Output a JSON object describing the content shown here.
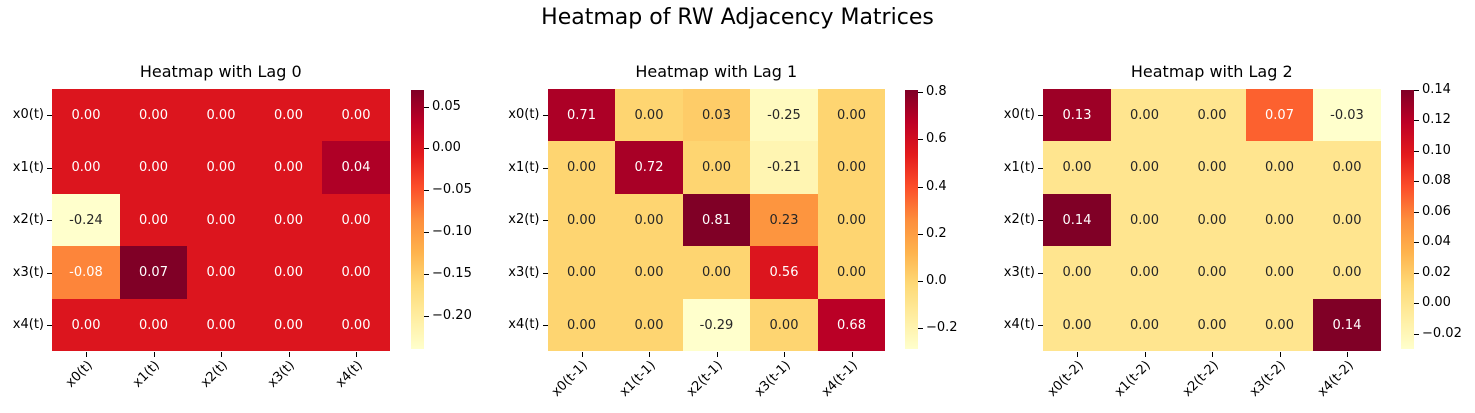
{
  "figure_title": "Heatmap of RW Adjacency Matrices",
  "colors": {
    "background": "#ffffff",
    "colormap": "YlOrRd",
    "colormap_stops": [
      "#ffffcc",
      "#ffeda0",
      "#fed976",
      "#feb24c",
      "#fd8d3c",
      "#fc4e2a",
      "#e31a1c",
      "#bd0026",
      "#800026"
    ],
    "annotation_light": "#ffffff",
    "annotation_dark": "#262626",
    "tick_color": "#000000"
  },
  "chart_data": [
    {
      "type": "heatmap",
      "title": "Heatmap with Lag 0",
      "row_labels": [
        "x0(t)",
        "x1(t)",
        "x2(t)",
        "x3(t)",
        "x4(t)"
      ],
      "col_labels": [
        "x0(t)",
        "x1(t)",
        "x2(t)",
        "x3(t)",
        "x4(t)"
      ],
      "values": [
        [
          0.0,
          0.0,
          0.0,
          0.0,
          0.0
        ],
        [
          0.0,
          0.0,
          0.0,
          0.0,
          0.04
        ],
        [
          -0.24,
          0.0,
          0.0,
          0.0,
          0.0
        ],
        [
          -0.08,
          0.07,
          0.0,
          0.0,
          0.0
        ],
        [
          0.0,
          0.0,
          0.0,
          0.0,
          0.0
        ]
      ],
      "vmin": -0.24,
      "vmax": 0.07,
      "colorbar_ticks": [
        0.05,
        0.0,
        -0.05,
        -0.1,
        -0.15,
        -0.2
      ],
      "colorbar_tick_decimals": 2,
      "annot_decimals": 2,
      "legend_position": "right"
    },
    {
      "type": "heatmap",
      "title": "Heatmap with Lag 1",
      "row_labels": [
        "x0(t)",
        "x1(t)",
        "x2(t)",
        "x3(t)",
        "x4(t)"
      ],
      "col_labels": [
        "x0(t-1)",
        "x1(t-1)",
        "x2(t-1)",
        "x3(t-1)",
        "x4(t-1)"
      ],
      "values": [
        [
          0.71,
          0.0,
          0.03,
          -0.25,
          0.0
        ],
        [
          0.0,
          0.72,
          0.0,
          -0.21,
          0.0
        ],
        [
          0.0,
          0.0,
          0.81,
          0.23,
          0.0
        ],
        [
          0.0,
          0.0,
          0.0,
          0.56,
          0.0
        ],
        [
          0.0,
          0.0,
          -0.29,
          0.0,
          0.68
        ]
      ],
      "vmin": -0.29,
      "vmax": 0.81,
      "colorbar_ticks": [
        0.8,
        0.6,
        0.4,
        0.2,
        0.0,
        -0.2
      ],
      "colorbar_tick_decimals": 1,
      "annot_decimals": 2,
      "legend_position": "right"
    },
    {
      "type": "heatmap",
      "title": "Heatmap with Lag 2",
      "row_labels": [
        "x0(t)",
        "x1(t)",
        "x2(t)",
        "x3(t)",
        "x4(t)"
      ],
      "col_labels": [
        "x0(t-2)",
        "x1(t-2)",
        "x2(t-2)",
        "x3(t-2)",
        "x4(t-2)"
      ],
      "values": [
        [
          0.13,
          0.0,
          0.0,
          0.07,
          -0.03
        ],
        [
          0.0,
          0.0,
          0.0,
          0.0,
          0.0
        ],
        [
          0.14,
          0.0,
          0.0,
          0.0,
          0.0
        ],
        [
          0.0,
          0.0,
          0.0,
          0.0,
          0.0
        ],
        [
          0.0,
          0.0,
          0.0,
          0.0,
          0.14
        ]
      ],
      "vmin": -0.03,
      "vmax": 0.14,
      "colorbar_ticks": [
        0.14,
        0.12,
        0.1,
        0.08,
        0.06,
        0.04,
        0.02,
        0.0,
        -0.02
      ],
      "colorbar_tick_decimals": 2,
      "annot_decimals": 2,
      "legend_position": "right"
    }
  ]
}
